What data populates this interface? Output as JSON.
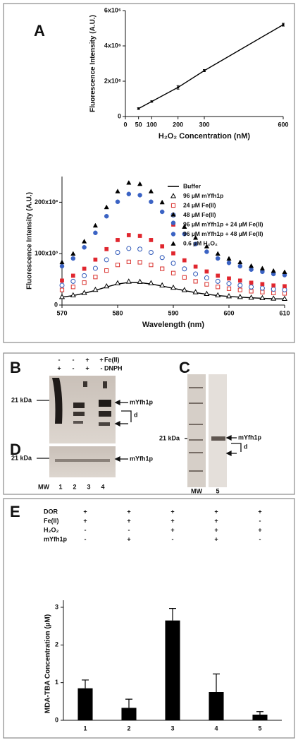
{
  "chart_data": [
    {
      "type": "line",
      "panel": "A",
      "xlabel": "H₂O₂ Concentration (nM)",
      "ylabel": "Fluorescence Intensity (A.U.)",
      "xlim": [
        0,
        600
      ],
      "xticks": [
        0,
        50,
        100,
        200,
        300,
        600
      ],
      "ylim": [
        0,
        6000000
      ],
      "yticks": [
        0,
        {
          "value": 2000000,
          "label": "2x10⁶"
        },
        {
          "value": 4000000,
          "label": "4x10⁶"
        },
        {
          "value": 6000000,
          "label": "6x10⁶"
        }
      ],
      "x": [
        50,
        100,
        200,
        300,
        600
      ],
      "series": [
        {
          "name": null,
          "color": "#000000",
          "marker": "dot",
          "values": [
            450000,
            850000,
            1650000,
            2600000,
            5200000
          ],
          "errors": [
            50000,
            40000,
            100000,
            60000,
            80000
          ]
        }
      ]
    },
    {
      "type": "line",
      "xlabel": "Wavelength (nm)",
      "ylabel": "Fluorescence Intensity (A.U.)",
      "xlim": [
        570,
        610
      ],
      "xticks": [
        570,
        580,
        590,
        600,
        610
      ],
      "ylim": [
        0,
        250000
      ],
      "yticks": [
        0,
        {
          "value": 100000,
          "label": "100x10³"
        },
        {
          "value": 200000,
          "label": "200x10³"
        }
      ],
      "x": [
        570,
        572,
        574,
        576,
        578,
        580,
        582,
        584,
        586,
        588,
        590,
        592,
        594,
        596,
        598,
        600,
        602,
        604,
        606,
        608,
        610
      ],
      "series": [
        {
          "name": "Buffer",
          "color": "#000000",
          "marker": "none",
          "values": [
            15400,
            18500,
            22900,
            28600,
            35200,
            40900,
            44000,
            43600,
            40900,
            37000,
            32600,
            28200,
            24200,
            21100,
            18500,
            16700,
            15400,
            14100,
            13200,
            12300,
            11900
          ]
        },
        {
          "name": "96 µM mYfh1p",
          "color": "#000000",
          "marker": "open-triangle",
          "values": [
            16100,
            19300,
            23900,
            29900,
            36800,
            42800,
            46000,
            45500,
            42800,
            38600,
            34000,
            29400,
            25300,
            22100,
            19300,
            17500,
            16100,
            14700,
            13800,
            12900,
            12400
          ]
        },
        {
          "name": "24 µM Fe(II)",
          "color": "#d9302c",
          "marker": "open-square",
          "values": [
            29400,
            35300,
            43700,
            54600,
            67200,
            78100,
            84000,
            83200,
            78100,
            70600,
            62200,
            53800,
            46200,
            40300,
            35300,
            31900,
            29400,
            26900,
            25200,
            23500,
            22700
          ]
        },
        {
          "name": "48 µM Fe(II)",
          "color": "#2c56b8",
          "marker": "open-circle",
          "values": [
            38500,
            46200,
            57200,
            71500,
            88000,
            102300,
            110000,
            108900,
            102300,
            92400,
            81400,
            70400,
            60500,
            52800,
            46200,
            41800,
            38500,
            35200,
            33000,
            30800,
            29700
          ]
        },
        {
          "name": "96 µM mYfh1p + 24 µM Fe(II)",
          "color": "#e0262e",
          "marker": "square",
          "values": [
            47600,
            57100,
            70700,
            88400,
            108800,
            126500,
            136000,
            134600,
            126500,
            114200,
            100600,
            87000,
            74800,
            65300,
            57100,
            51700,
            47600,
            43500,
            40800,
            38100,
            36700
          ]
        },
        {
          "name": "96 µM mYfh1p + 48 µM Fe(II)",
          "color": "#3b63c4",
          "marker": "circle",
          "values": [
            75600,
            90700,
            112300,
            140400,
            172800,
            200900,
            216000,
            213800,
            200900,
            181400,
            159800,
            138200,
            118800,
            103700,
            90700,
            82100,
            75600,
            69100,
            64800,
            60500,
            58300
          ]
        },
        {
          "name": "0.6 µM H₂O₂",
          "color": "#000000",
          "marker": "triangle",
          "values": [
            83300,
            100000,
            123800,
            154700,
            190400,
            221300,
            238000,
            235600,
            221300,
            199900,
            176100,
            152300,
            130900,
            114200,
            100000,
            90400,
            83300,
            76200,
            71400,
            66600,
            64300
          ]
        }
      ]
    },
    {
      "type": "bar",
      "panel": "E",
      "ylabel": "MDA-TBA Concentration (µM)",
      "categories": [
        "1",
        "2",
        "3",
        "4",
        "5"
      ],
      "values": [
        0.85,
        0.33,
        2.65,
        0.75,
        0.15
      ],
      "errors": [
        0.22,
        0.23,
        0.32,
        0.48,
        0.08
      ],
      "color": "#000000",
      "ylim": [
        0,
        3
      ],
      "yticks": [
        0,
        1,
        2,
        3
      ],
      "conditions": [
        {
          "label": "DOR",
          "signs": [
            "+",
            "+",
            "+",
            "+",
            "+"
          ]
        },
        {
          "label": "Fe(II)",
          "signs": [
            "+",
            "+",
            "+",
            "+",
            "-"
          ]
        },
        {
          "label": "H₂O₂",
          "signs": [
            "-",
            "-",
            "+",
            "+",
            "+"
          ]
        },
        {
          "label": "mYfh1p",
          "signs": [
            "-",
            "+",
            "-",
            "+",
            "-"
          ]
        }
      ]
    }
  ],
  "gels": {
    "b": "B",
    "c": "C",
    "d": "D",
    "fe": "Fe(II)",
    "dnph": "DNPH",
    "fe_signs": [
      "-",
      "-",
      "+",
      "+"
    ],
    "dnph_signs": [
      "+",
      "-",
      "+",
      "-"
    ],
    "kda_b": "21 kDa",
    "kda_c": "21 kDa",
    "kda_d": "21 kDa",
    "myfh_b": "mYfh1p",
    "myfh_c": "mYfh1p",
    "myfh_d": "mYfh1p",
    "d_b": "d",
    "d_c": "d",
    "lanes_bd": [
      "MW",
      "1",
      "2",
      "3",
      "4"
    ],
    "lanes_c": [
      "MW",
      "5"
    ]
  }
}
